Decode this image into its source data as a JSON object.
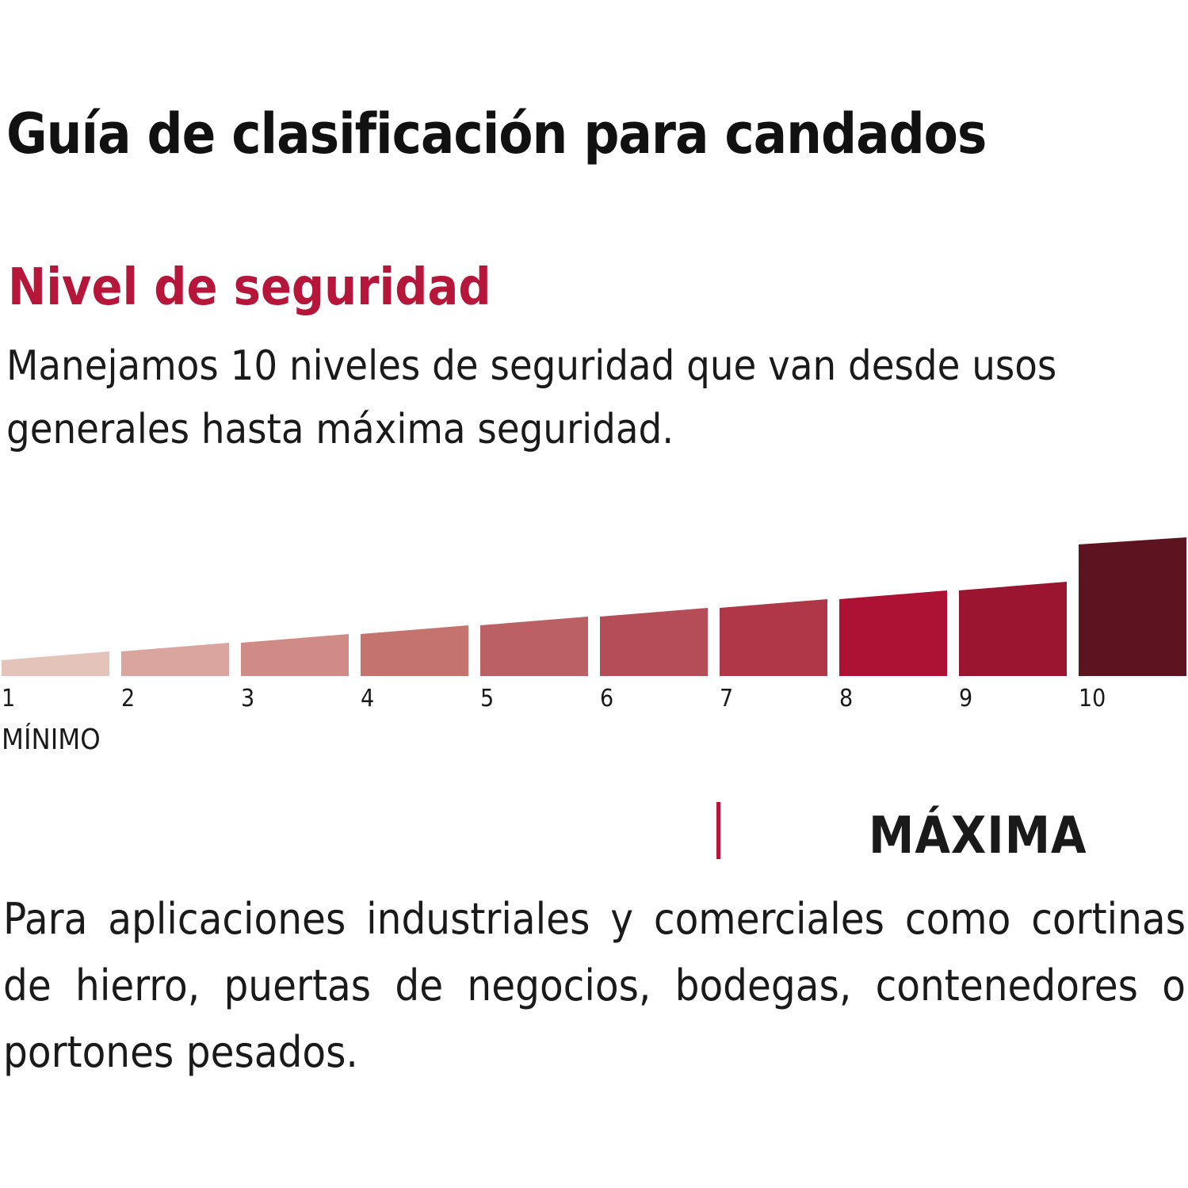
{
  "header": {
    "title": "Guía de clasificación para candados"
  },
  "section": {
    "title": "Nivel de seguridad",
    "intro": "Manejamos 10 niveles de seguridad que van desde usos generales hasta máxima seguridad."
  },
  "chart_data": {
    "type": "bar",
    "title": "Nivel de seguridad",
    "categories": [
      "1",
      "2",
      "3",
      "4",
      "5",
      "6",
      "7",
      "8",
      "9",
      "10"
    ],
    "values": [
      1,
      2,
      3,
      4,
      5,
      6,
      7,
      8,
      9,
      10
    ],
    "colors": [
      "#e4c3bb",
      "#dba59f",
      "#d18b86",
      "#c4736f",
      "#bb6163",
      "#b44d57",
      "#ae3748",
      "#ad1235",
      "#9c1530",
      "#5e1420"
    ],
    "min_label": "MÍNIMO",
    "xlabel": "",
    "ylabel": "",
    "ylim": [
      0,
      10
    ],
    "grid": false,
    "legend": "none"
  },
  "selected_level": {
    "name": "MÁXIMA",
    "description": "Para aplicaciones industriales y comerciales como cortinas de hierro, puertas de negocios, bodegas, contenedores o portones pesados."
  },
  "accent_color": "#b5163a"
}
